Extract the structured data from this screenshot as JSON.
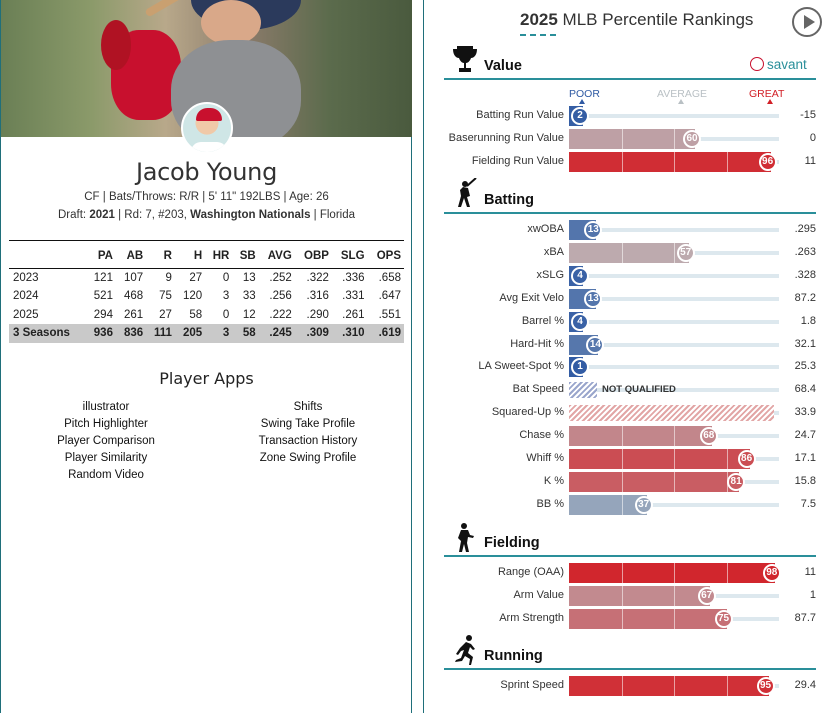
{
  "player": {
    "name": "Jacob Young",
    "bio": "CF | Bats/Throws: R/R | 5' 11\" 192LBS | Age: 26",
    "draft_prefix": "Draft: ",
    "draft_year": "2021",
    "draft_mid": " | Rd: 7, #203, ",
    "draft_team": "Washington Nationals",
    "draft_suffix": " | Florida"
  },
  "stats": {
    "headers": [
      "",
      "PA",
      "AB",
      "R",
      "H",
      "HR",
      "SB",
      "AVG",
      "OBP",
      "SLG",
      "OPS"
    ],
    "rows": [
      [
        "2023",
        "121",
        "107",
        "9",
        "27",
        "0",
        "13",
        ".252",
        ".322",
        ".336",
        ".658"
      ],
      [
        "2024",
        "521",
        "468",
        "75",
        "120",
        "3",
        "33",
        ".256",
        ".316",
        ".331",
        ".647"
      ],
      [
        "2025",
        "294",
        "261",
        "27",
        "58",
        "0",
        "12",
        ".222",
        ".290",
        ".261",
        ".551"
      ],
      [
        "3 Seasons",
        "936",
        "836",
        "111",
        "205",
        "3",
        "58",
        ".245",
        ".309",
        ".310",
        ".619"
      ]
    ]
  },
  "apps": {
    "title": "Player Apps",
    "left": [
      "illustrator",
      "Pitch Highlighter",
      "Player Comparison",
      "Player Similarity",
      "Random Video"
    ],
    "right": [
      "Shifts",
      "Swing Take Profile",
      "Transaction History",
      "Zone Swing Profile"
    ]
  },
  "rankings": {
    "title_year": "2025",
    "title_text": " MLB Percentile Rankings",
    "savant": "savant",
    "scale": {
      "poor": "POOR",
      "average": "AVERAGE",
      "great": "GREAT"
    },
    "not_qualified": "NOT QUALIFIED",
    "sections": [
      {
        "label": "Value",
        "icon": "trophy-icon",
        "rows": [
          {
            "label": "Batting Run Value",
            "pct": 2,
            "value": "-15"
          },
          {
            "label": "Baserunning Run Value",
            "pct": 60,
            "value": "0"
          },
          {
            "label": "Fielding Run Value",
            "pct": 96,
            "value": "11"
          }
        ]
      },
      {
        "label": "Batting",
        "icon": "batter-icon",
        "rows": [
          {
            "label": "xwOBA",
            "pct": 13,
            "value": ".295"
          },
          {
            "label": "xBA",
            "pct": 57,
            "value": ".263"
          },
          {
            "label": "xSLG",
            "pct": 4,
            "value": ".328"
          },
          {
            "label": "Avg Exit Velo",
            "pct": 13,
            "value": "87.2"
          },
          {
            "label": "Barrel %",
            "pct": 4,
            "value": "1.8"
          },
          {
            "label": "Hard-Hit %",
            "pct": 14,
            "value": "32.1"
          },
          {
            "label": "LA Sweet-Spot %",
            "pct": 1,
            "value": "25.3"
          },
          {
            "label": "Bat Speed",
            "pct": null,
            "value": "68.4",
            "status": "not_qualified"
          },
          {
            "label": "Squared-Up %",
            "pct": null,
            "value": "33.9",
            "status": "hatched"
          },
          {
            "label": "Chase %",
            "pct": 68,
            "value": "24.7"
          },
          {
            "label": "Whiff %",
            "pct": 86,
            "value": "17.1"
          },
          {
            "label": "K %",
            "pct": 81,
            "value": "15.8"
          },
          {
            "label": "BB %",
            "pct": 37,
            "value": "7.5"
          }
        ]
      },
      {
        "label": "Fielding",
        "icon": "fielder-icon",
        "rows": [
          {
            "label": "Range (OAA)",
            "pct": 98,
            "value": "11"
          },
          {
            "label": "Arm Value",
            "pct": 67,
            "value": "1"
          },
          {
            "label": "Arm Strength",
            "pct": 75,
            "value": "87.7"
          }
        ]
      },
      {
        "label": "Running",
        "icon": "runner-icon",
        "rows": [
          {
            "label": "Sprint Speed",
            "pct": 95,
            "value": "29.4"
          }
        ]
      }
    ]
  },
  "colors": {
    "teal": "#2a8f9a",
    "poor_blue": "#2f5aa3",
    "great_red": "#d22027",
    "average_grey": "#b9c0c4"
  }
}
